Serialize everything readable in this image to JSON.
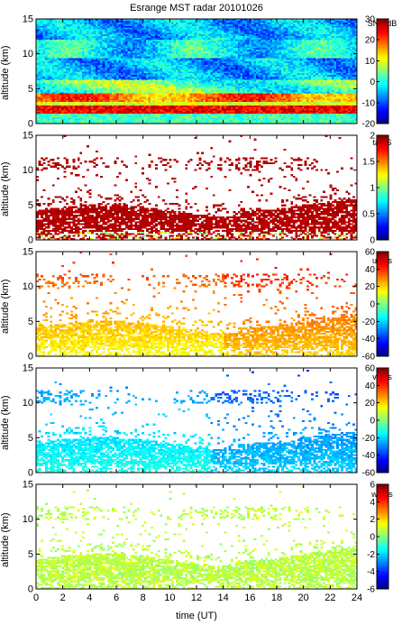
{
  "chart_data": {
    "type": "heatmap",
    "title": "Esrange MST radar 20101026",
    "xlabel": "time (UT)",
    "xlim": [
      0,
      24
    ],
    "xticks": [
      0,
      2,
      4,
      6,
      8,
      10,
      12,
      14,
      16,
      18,
      20,
      22,
      24
    ],
    "panels": [
      {
        "id": "snr",
        "ylabel": "altitude (km)",
        "ylim": [
          0,
          15
        ],
        "yticks": [
          0,
          5,
          10,
          15
        ],
        "colorbar_label": "SNR dB",
        "clim": [
          -20,
          30
        ],
        "cticks": [
          -20,
          -10,
          0,
          10,
          20,
          30
        ]
      },
      {
        "id": "tau",
        "ylabel": "altitude (km)",
        "ylim": [
          0,
          15
        ],
        "yticks": [
          0,
          5,
          10,
          15
        ],
        "colorbar_label": "tau S",
        "clim": [
          0,
          2
        ],
        "cticks": [
          0,
          0.5,
          1,
          1.5,
          2
        ]
      },
      {
        "id": "u",
        "ylabel": "altitude (km)",
        "ylim": [
          0,
          15
        ],
        "yticks": [
          0,
          5,
          10,
          15
        ],
        "colorbar_label": "u m/s",
        "clim": [
          -60,
          60
        ],
        "cticks": [
          -60,
          -40,
          -20,
          0,
          20,
          40,
          60
        ]
      },
      {
        "id": "v",
        "ylabel": "altitude (km)",
        "ylim": [
          0,
          15
        ],
        "yticks": [
          0,
          5,
          10,
          15
        ],
        "colorbar_label": "v m/s",
        "clim": [
          -60,
          60
        ],
        "cticks": [
          -60,
          -40,
          -20,
          0,
          20,
          40,
          60
        ]
      },
      {
        "id": "w",
        "ylabel": "altitude (km)",
        "ylim": [
          0,
          15
        ],
        "yticks": [
          0,
          5,
          10,
          15
        ],
        "colorbar_label": "w m/s",
        "clim": [
          -6,
          6
        ],
        "cticks": [
          -6,
          -4,
          -2,
          0,
          2,
          4,
          6
        ]
      }
    ]
  }
}
